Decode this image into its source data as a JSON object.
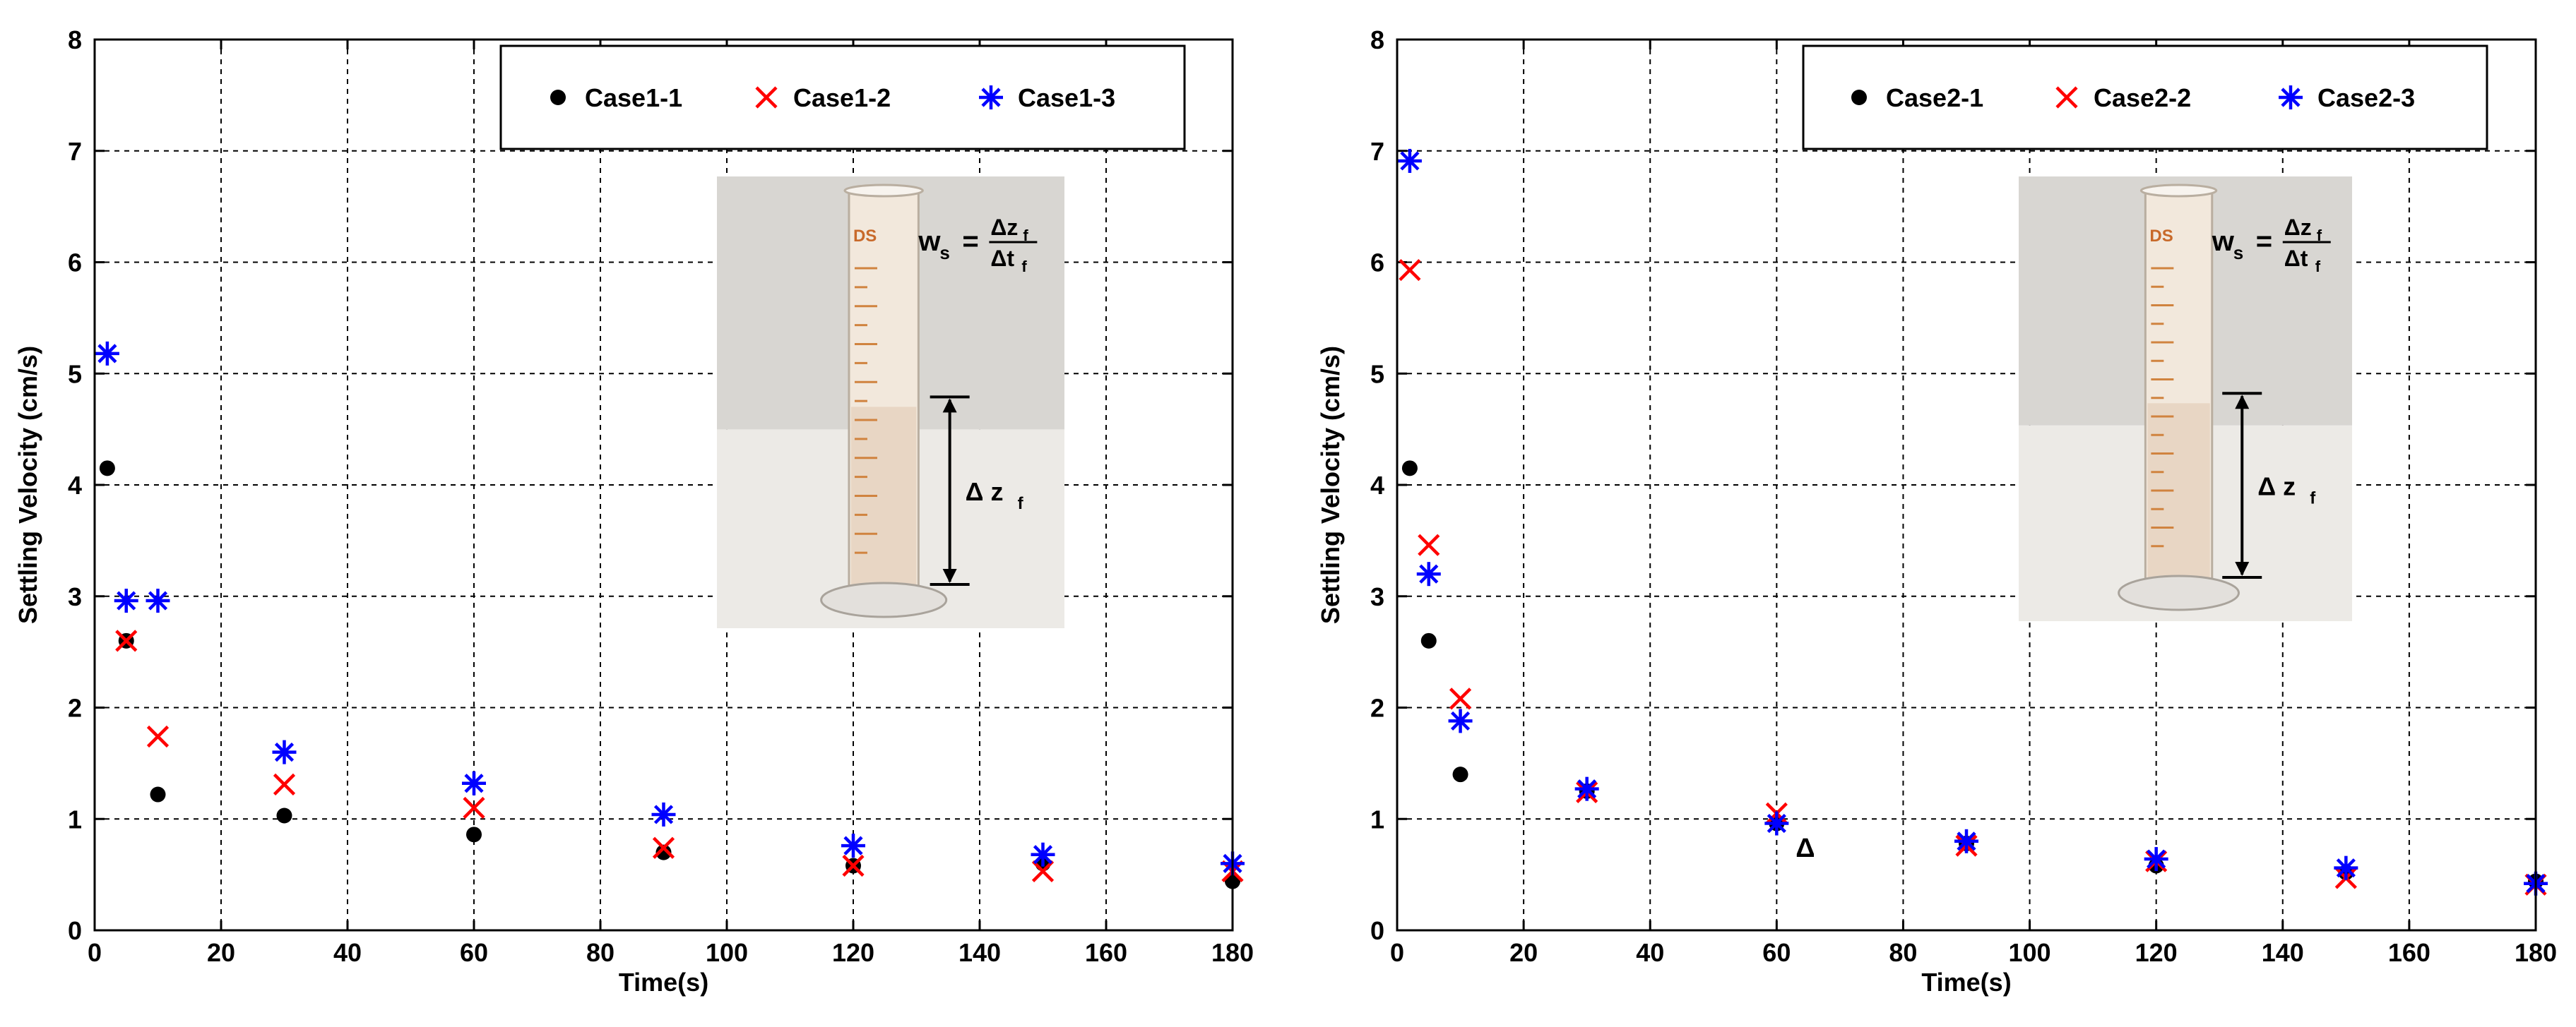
{
  "chart_data": [
    {
      "type": "scatter",
      "xlabel": "Time(s)",
      "ylabel": "Settling Velocity (cm/s)",
      "xlim": [
        0,
        180
      ],
      "ylim": [
        0,
        8
      ],
      "xticks": [
        0,
        20,
        40,
        60,
        80,
        100,
        120,
        140,
        160,
        180
      ],
      "yticks": [
        0,
        1,
        2,
        3,
        4,
        5,
        6,
        7,
        8
      ],
      "grid": true,
      "legend_position": "top-right",
      "series": [
        {
          "name": "Case1-1",
          "marker": "dot",
          "color": "#000000",
          "x": [
            2,
            5,
            10,
            30,
            60,
            90,
            120,
            150,
            180
          ],
          "y": [
            4.15,
            2.6,
            1.22,
            1.03,
            0.86,
            0.7,
            0.58,
            0.6,
            0.44
          ]
        },
        {
          "name": "Case1-2",
          "marker": "x",
          "color": "#ff0000",
          "x": [
            5,
            10,
            30,
            60,
            90,
            120,
            150,
            180
          ],
          "y": [
            2.6,
            1.74,
            1.31,
            1.1,
            0.74,
            0.58,
            0.53,
            0.53
          ]
        },
        {
          "name": "Case1-3",
          "marker": "asterisk",
          "color": "#0000ff",
          "x": [
            2,
            5,
            10,
            30,
            60,
            90,
            120,
            150,
            180
          ],
          "y": [
            5.18,
            2.96,
            2.96,
            1.6,
            1.32,
            1.04,
            0.76,
            0.68,
            0.6
          ]
        }
      ],
      "inset": {
        "formula_lhs": "w",
        "formula_lhs_sub": "s",
        "formula_eq": "=",
        "formula_num": "Δz",
        "formula_num_sub": "f",
        "formula_den": "Δt",
        "formula_den_sub": "f",
        "dz_label": "Δ z",
        "dz_sub": "f",
        "cylinder_mark": "DS"
      }
    },
    {
      "type": "scatter",
      "xlabel": "Time(s)",
      "ylabel": "Settling Velocity (cm/s)",
      "xlim": [
        0,
        180
      ],
      "ylim": [
        0,
        8
      ],
      "xticks": [
        0,
        20,
        40,
        60,
        80,
        100,
        120,
        140,
        160,
        180
      ],
      "yticks": [
        0,
        1,
        2,
        3,
        4,
        5,
        6,
        7,
        8
      ],
      "grid": true,
      "legend_position": "top-right",
      "annotation": "Δ",
      "annotation_at": [
        63,
        0.66
      ],
      "series": [
        {
          "name": "Case2-1",
          "marker": "dot",
          "color": "#000000",
          "x": [
            2,
            5,
            10,
            30,
            60,
            90,
            120,
            150,
            180
          ],
          "y": [
            4.15,
            2.6,
            1.4,
            1.25,
            0.96,
            0.78,
            0.58,
            0.52,
            0.44
          ]
        },
        {
          "name": "Case2-2",
          "marker": "x",
          "color": "#ff0000",
          "x": [
            2,
            5,
            10,
            30,
            60,
            90,
            120,
            150,
            180
          ],
          "y": [
            5.93,
            3.46,
            2.08,
            1.24,
            1.05,
            0.76,
            0.62,
            0.47,
            0.41
          ]
        },
        {
          "name": "Case2-3",
          "marker": "asterisk",
          "color": "#0000ff",
          "x": [
            2,
            5,
            10,
            30,
            60,
            90,
            120,
            150,
            180
          ],
          "y": [
            6.91,
            3.2,
            1.88,
            1.27,
            0.96,
            0.8,
            0.64,
            0.56,
            0.42
          ]
        }
      ],
      "inset": {
        "formula_lhs": "w",
        "formula_lhs_sub": "s",
        "formula_eq": "=",
        "formula_num": "Δz",
        "formula_num_sub": "f",
        "formula_den": "Δt",
        "formula_den_sub": "f",
        "dz_label": "Δ z",
        "dz_sub": "f",
        "cylinder_mark": "DS"
      }
    }
  ]
}
